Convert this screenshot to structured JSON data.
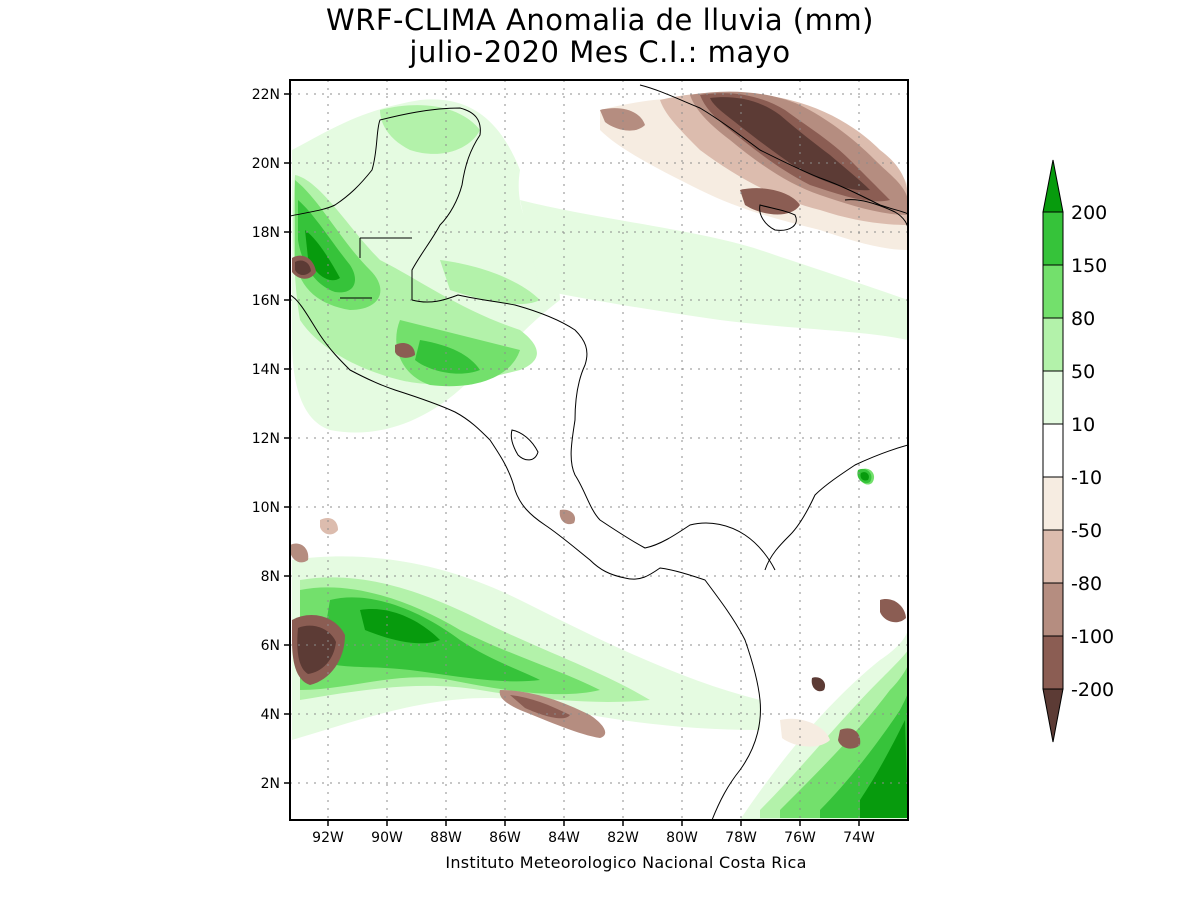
{
  "title_line1": "WRF-CLIMA Anomalia de lluvia (mm)",
  "title_line2": "julio-2020 Mes C.I.: mayo",
  "footer": "Instituto Meteorologico Nacional Costa Rica",
  "lon_labels": [
    "92W",
    "90W",
    "88W",
    "86W",
    "84W",
    "82W",
    "80W",
    "78W",
    "76W",
    "74W"
  ],
  "lat_labels": [
    "22N",
    "20N",
    "18N",
    "16N",
    "14N",
    "12N",
    "10N",
    "8N",
    "6N",
    "4N",
    "2N"
  ],
  "legend": {
    "labels": [
      "200",
      "150",
      "80",
      "50",
      "10",
      "-10",
      "-50",
      "-80",
      "-100",
      "-200"
    ],
    "colors": [
      "#079b0d",
      "#36c33a",
      "#73e06c",
      "#b3f2aa",
      "#e5fbe1",
      "#ffffff",
      "#f6ece1",
      "#dcbcae",
      "#b58d80",
      "#8b5d53",
      "#5c3b35"
    ]
  },
  "icons": {
    "coastline": "coastline-lines",
    "colorbar": "colorbar-triangles"
  }
}
